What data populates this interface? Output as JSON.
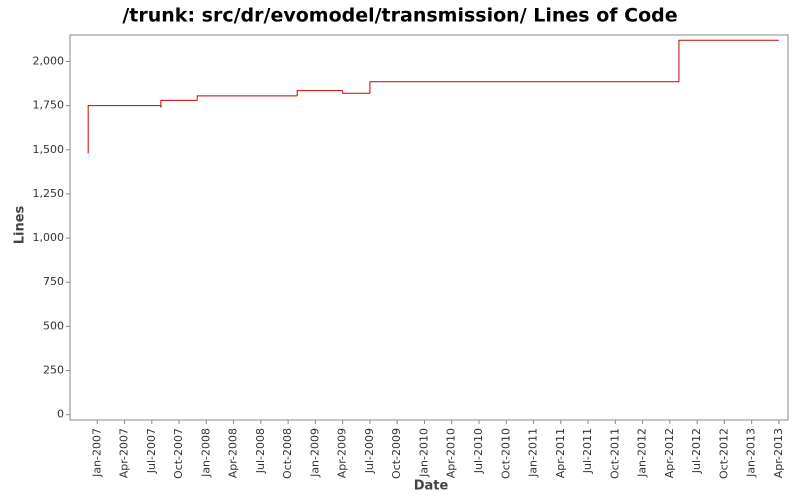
{
  "chart_data": {
    "type": "step",
    "title": "/trunk: src/dr/evomodel/transmission/ Lines of Code",
    "x_label": "Date",
    "y_label": "Lines",
    "x": [
      "2006-12",
      "2006-12",
      "2007-08",
      "2007-08",
      "2007-12",
      "2008-11",
      "2009-04",
      "2009-07",
      "2012-05",
      "2013-04"
    ],
    "series": [
      {
        "name": "Lines",
        "color": "#cc0000",
        "values": [
          1480,
          1750,
          1740,
          1780,
          1805,
          1835,
          1820,
          1885,
          2120,
          2120
        ]
      }
    ],
    "xlim": [
      "2006-10",
      "2013-05"
    ],
    "xticks": [
      {
        "value": "2007-01",
        "label": "Jan-2007"
      },
      {
        "value": "2007-04",
        "label": "Apr-2007"
      },
      {
        "value": "2007-07",
        "label": "Jul-2007"
      },
      {
        "value": "2007-10",
        "label": "Oct-2007"
      },
      {
        "value": "2008-01",
        "label": "Jan-2008"
      },
      {
        "value": "2008-04",
        "label": "Apr-2008"
      },
      {
        "value": "2008-07",
        "label": "Jul-2008"
      },
      {
        "value": "2008-10",
        "label": "Oct-2008"
      },
      {
        "value": "2009-01",
        "label": "Jan-2009"
      },
      {
        "value": "2009-04",
        "label": "Apr-2009"
      },
      {
        "value": "2009-07",
        "label": "Jul-2009"
      },
      {
        "value": "2009-10",
        "label": "Oct-2009"
      },
      {
        "value": "2010-01",
        "label": "Jan-2010"
      },
      {
        "value": "2010-04",
        "label": "Apr-2010"
      },
      {
        "value": "2010-07",
        "label": "Jul-2010"
      },
      {
        "value": "2010-10",
        "label": "Oct-2010"
      },
      {
        "value": "2011-01",
        "label": "Jan-2011"
      },
      {
        "value": "2011-04",
        "label": "Apr-2011"
      },
      {
        "value": "2011-07",
        "label": "Jul-2011"
      },
      {
        "value": "2011-10",
        "label": "Oct-2011"
      },
      {
        "value": "2012-01",
        "label": "Jan-2012"
      },
      {
        "value": "2012-04",
        "label": "Apr-2012"
      },
      {
        "value": "2012-07",
        "label": "Jul-2012"
      },
      {
        "value": "2012-10",
        "label": "Oct-2012"
      },
      {
        "value": "2013-01",
        "label": "Jan-2013"
      },
      {
        "value": "2013-04",
        "label": "Apr-2013"
      }
    ],
    "ylim": [
      -30,
      2150
    ],
    "yticks": [
      0,
      250,
      500,
      750,
      {
        "value": 1000,
        "label": "1,000"
      },
      {
        "value": 1250,
        "label": "1,250"
      },
      {
        "value": 1500,
        "label": "1,500"
      },
      {
        "value": 1750,
        "label": "1,750"
      },
      {
        "value": 2000,
        "label": "2,000"
      }
    ]
  }
}
